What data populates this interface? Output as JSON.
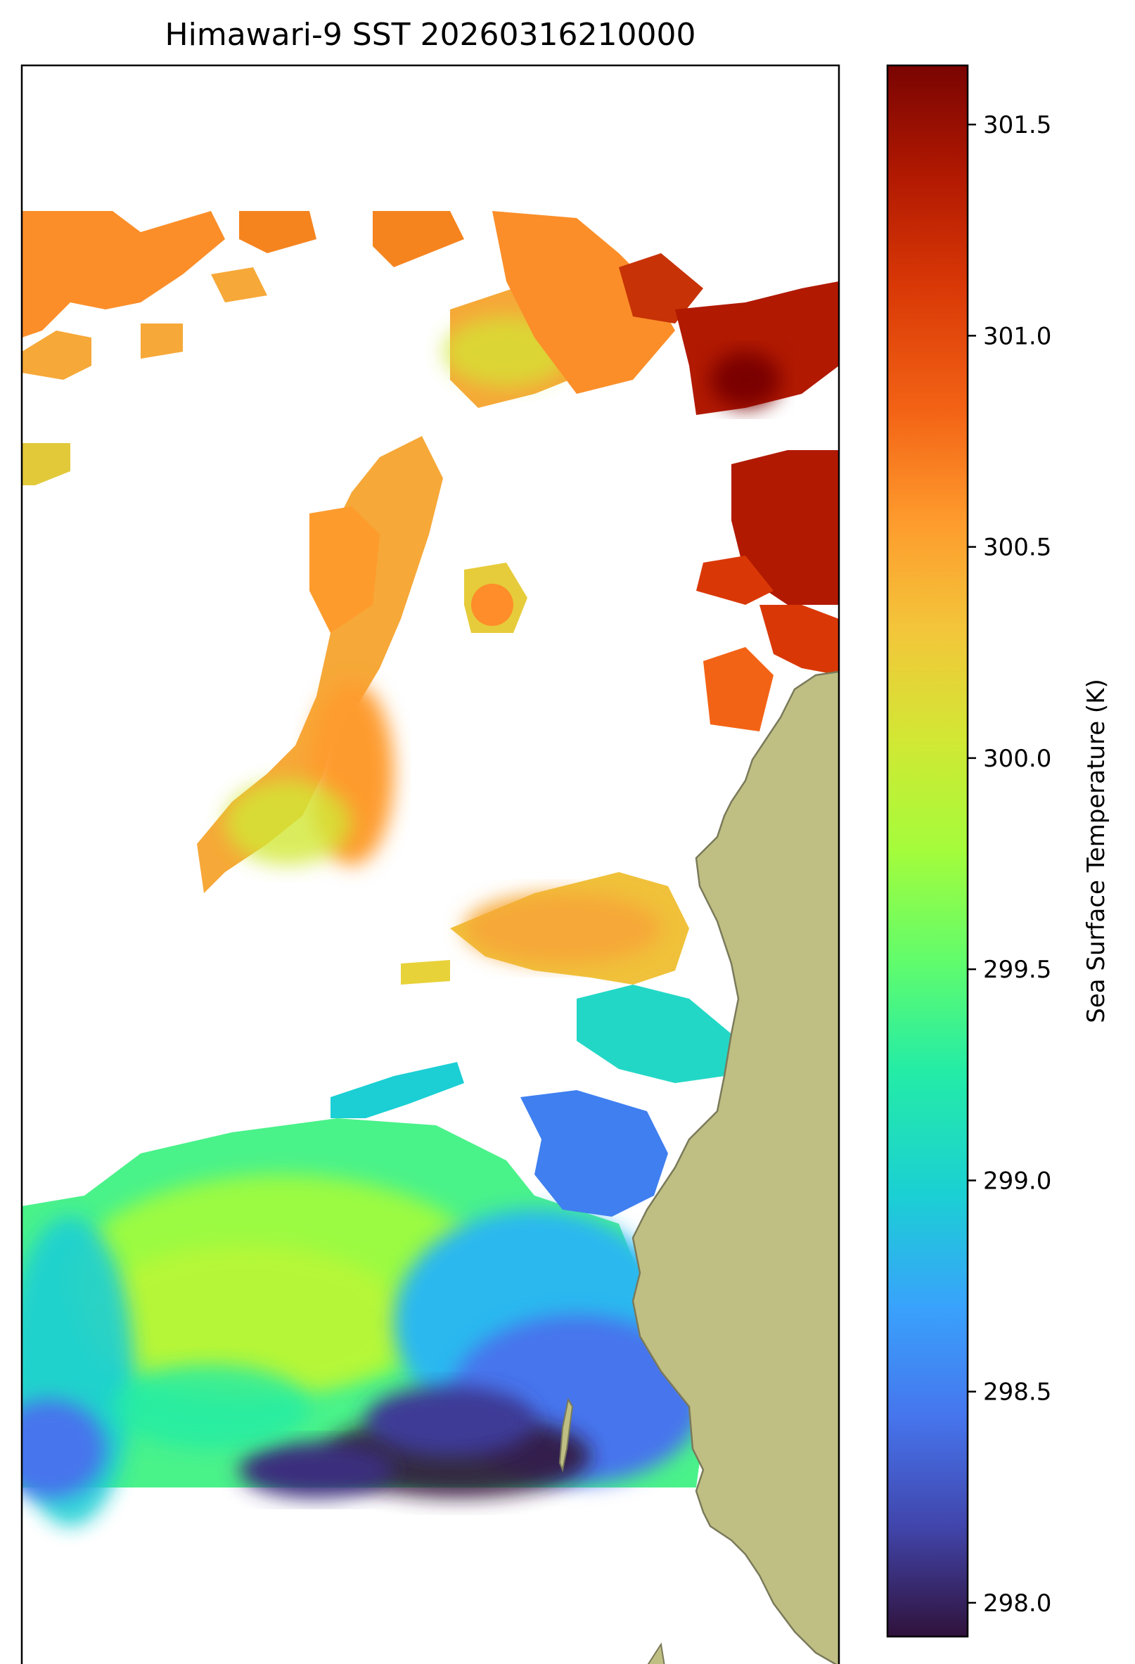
{
  "title": "Himawari-9 SST 20260316210000",
  "colorbar": {
    "label": "Sea Surface Temperature (K)",
    "ticks": [
      "298.0",
      "298.5",
      "299.0",
      "299.5",
      "300.0",
      "300.5",
      "301.0",
      "301.5"
    ],
    "range": [
      297.92,
      301.64
    ],
    "colormap": "turbo"
  },
  "colors": {
    "land": "#bfbf84",
    "coast": "#7a7a5a",
    "nodata": "#ffffff",
    "frame": "#000000"
  },
  "map_regions": [
    {
      "name": "northern-warm-patches",
      "approx_sst_K": "300.6-301.6"
    },
    {
      "name": "central-cloud-gap-patches",
      "approx_sst_K": "300.0-300.7"
    },
    {
      "name": "mid-coastal-band",
      "approx_sst_K": "298.7-300.3"
    },
    {
      "name": "southern-cool-pool",
      "approx_sst_K": "297.9-299.8"
    }
  ]
}
